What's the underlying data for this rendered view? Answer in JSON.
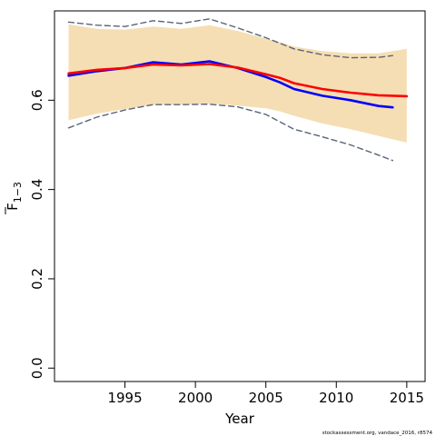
{
  "chart_data": {
    "type": "line",
    "title": "",
    "xlabel": "Year",
    "ylabel": "F",
    "ylabel_subscript": "1−3",
    "xlim": [
      1990,
      2016.3
    ],
    "ylim": [
      -0.03,
      0.8
    ],
    "x_ticks": [
      1995,
      2000,
      2005,
      2010,
      2015
    ],
    "y_ticks": [
      0.0,
      0.2,
      0.4,
      0.6
    ],
    "x_tick_labels": [
      "1995",
      "2000",
      "2005",
      "2010",
      "2015"
    ],
    "y_tick_labels": [
      "0.0",
      "0.2",
      "0.4",
      "0.6"
    ],
    "grid": false,
    "legend": "none",
    "band": {
      "color": "#f5deb3",
      "x": [
        1991,
        1993,
        1995,
        1997,
        1999,
        2001,
        2003,
        2005,
        2006,
        2007,
        2009,
        2011,
        2013,
        2015
      ],
      "lower": [
        0.555,
        0.57,
        0.58,
        0.59,
        0.59,
        0.592,
        0.588,
        0.582,
        0.575,
        0.565,
        0.548,
        0.535,
        0.52,
        0.505
      ],
      "upper": [
        0.77,
        0.76,
        0.758,
        0.765,
        0.76,
        0.768,
        0.755,
        0.738,
        0.73,
        0.72,
        0.71,
        0.705,
        0.705,
        0.715
      ]
    },
    "series": [
      {
        "color": "#0000ff",
        "style": "solid",
        "x": [
          1991,
          1993,
          1995,
          1997,
          1999,
          2001,
          2003,
          2005,
          2006,
          2007,
          2009,
          2011,
          2013,
          2014
        ],
        "y": [
          0.655,
          0.665,
          0.672,
          0.685,
          0.68,
          0.687,
          0.672,
          0.652,
          0.64,
          0.625,
          0.61,
          0.6,
          0.587,
          0.584
        ]
      },
      {
        "color": "#ff0000",
        "style": "solid",
        "x": [
          1991,
          1993,
          1995,
          1997,
          1999,
          2001,
          2003,
          2005,
          2006,
          2007,
          2009,
          2011,
          2013,
          2015
        ],
        "y": [
          0.66,
          0.668,
          0.672,
          0.68,
          0.678,
          0.681,
          0.673,
          0.658,
          0.65,
          0.638,
          0.625,
          0.617,
          0.611,
          0.609
        ]
      },
      {
        "color": "#5a6478",
        "style": "dashed",
        "x": [
          1991,
          1993,
          1995,
          1997,
          1999,
          2001,
          2003,
          2005,
          2007,
          2009,
          2011,
          2013,
          2014
        ],
        "y": [
          0.775,
          0.768,
          0.765,
          0.778,
          0.772,
          0.782,
          0.762,
          0.74,
          0.715,
          0.702,
          0.695,
          0.696,
          0.7
        ]
      },
      {
        "color": "#5a6478",
        "style": "dashed",
        "x": [
          1991,
          1993,
          1995,
          1997,
          1999,
          2001,
          2003,
          2005,
          2007,
          2009,
          2011,
          2013,
          2014
        ],
        "y": [
          0.538,
          0.562,
          0.578,
          0.59,
          0.59,
          0.591,
          0.585,
          0.568,
          0.535,
          0.518,
          0.5,
          0.477,
          0.465
        ]
      }
    ],
    "footer_note": "stockassessment.org, vandace_2016, r8574"
  }
}
